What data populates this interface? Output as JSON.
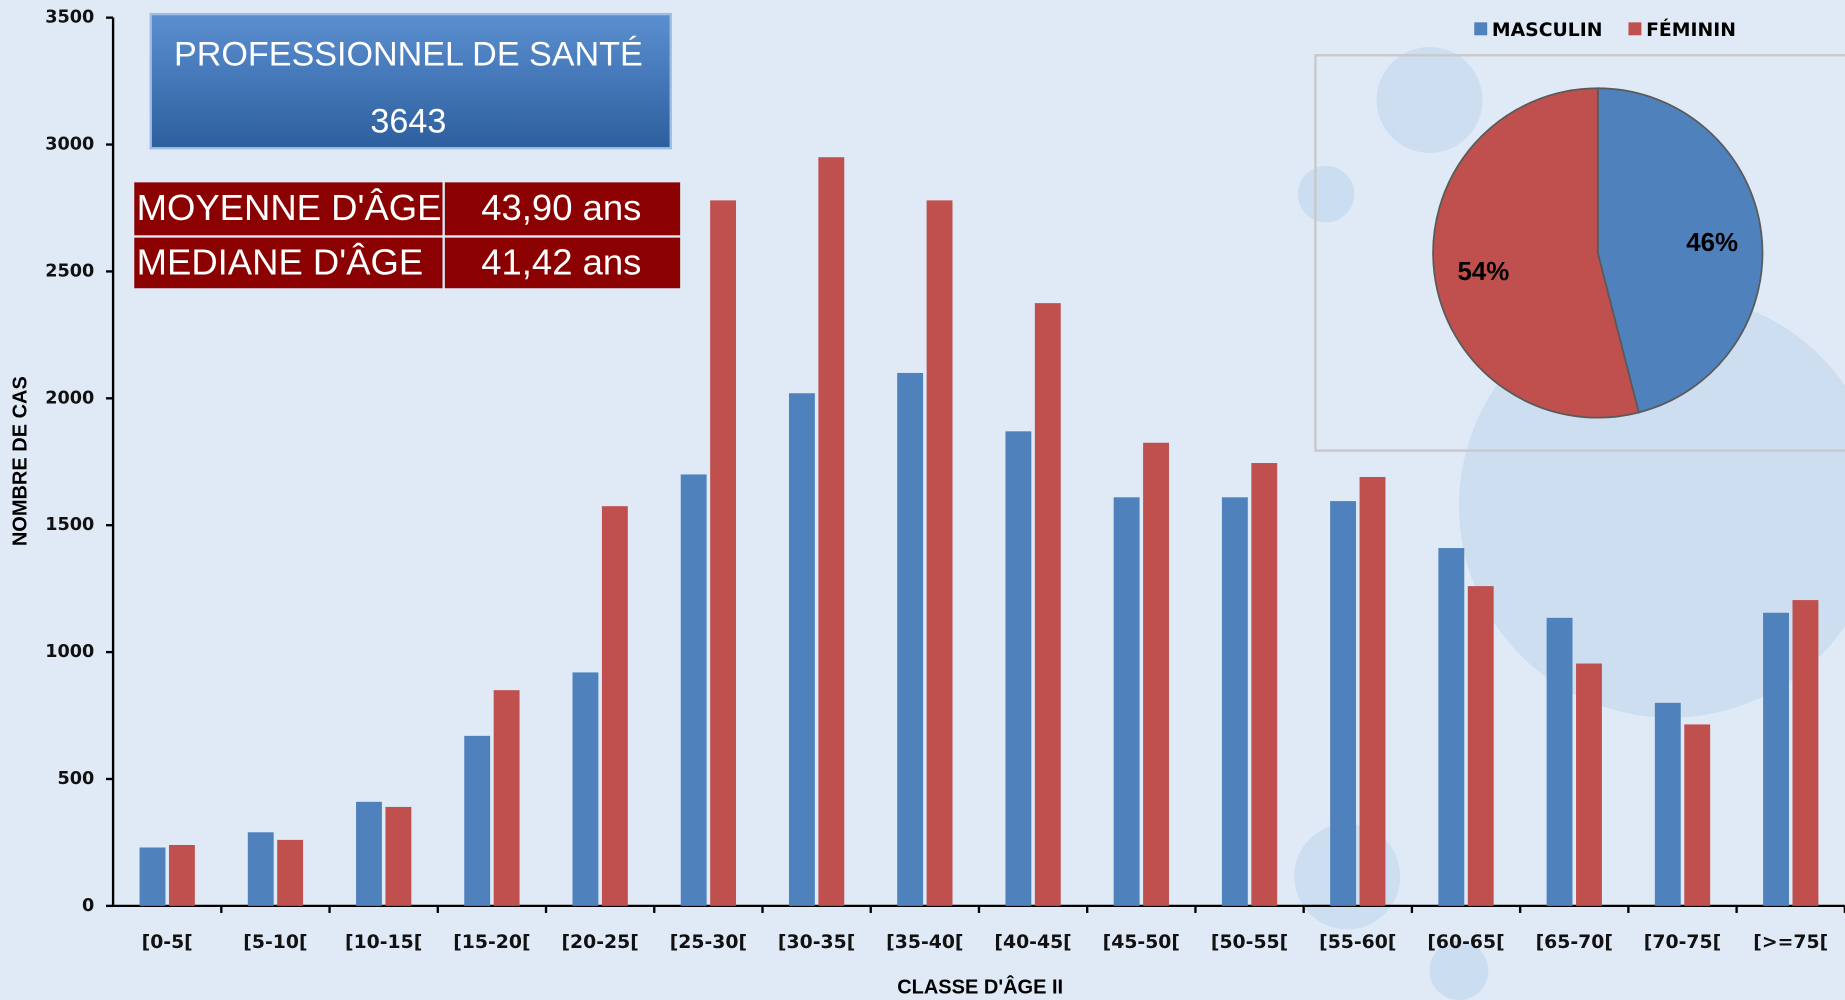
{
  "header": {
    "title": "PROFESSIONNEL DE SANTÉ",
    "total": "3643"
  },
  "stats": {
    "rows": [
      [
        "MOYENNE D'ÂGE",
        "43,90 ans"
      ],
      [
        "MEDIANE D'ÂGE",
        "41,42 ans"
      ]
    ]
  },
  "chart_data": [
    {
      "type": "bar",
      "x_label": "CLASSE D'ÂGE II",
      "y_label": "NOMBRE DE CAS",
      "categories": [
        "[0-5[",
        "[5-10[",
        "[10-15[",
        "[15-20[",
        "[20-25[",
        "[25-30[",
        "[30-35[",
        "[35-40[",
        "[40-45[",
        "[45-50[",
        "[50-55[",
        "[55-60[",
        "[60-65[",
        "[65-70[",
        "[70-75[",
        "[>=75["
      ],
      "series": [
        {
          "name": "MASCULIN",
          "color": "#4f81bd",
          "values": [
            230,
            290,
            410,
            670,
            920,
            1700,
            2020,
            2100,
            1870,
            1610,
            1610,
            1595,
            1410,
            1135,
            800,
            1155
          ]
        },
        {
          "name": "FÉMININ",
          "color": "#c0504d",
          "values": [
            240,
            260,
            390,
            850,
            1575,
            2780,
            2950,
            2780,
            2375,
            1825,
            1745,
            1690,
            1260,
            955,
            715,
            1205
          ]
        }
      ],
      "ylim": [
        0,
        3500
      ],
      "yticks": [
        0,
        500,
        1000,
        1500,
        2000,
        2500,
        3000,
        3500
      ],
      "grid": false,
      "legend": "top-right"
    },
    {
      "type": "pie",
      "values": [
        46,
        54
      ],
      "value_labels": [
        "46%",
        "54%"
      ],
      "colors": [
        "#4f81bd",
        "#c0504d"
      ]
    }
  ]
}
